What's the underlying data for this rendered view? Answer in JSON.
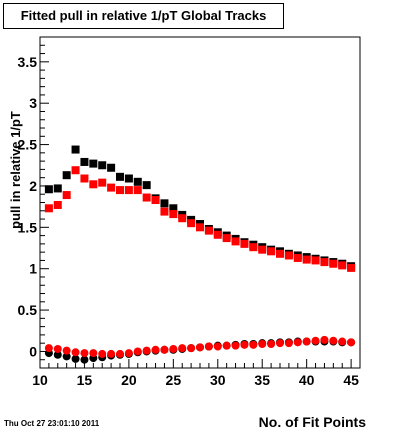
{
  "chart_data": {
    "type": "scatter",
    "title": "Fitted pull in relative 1/pT  Global Tracks",
    "xlabel": "No. of Fit Points",
    "ylabel": "pull in relative 1/pT",
    "xlim": [
      10,
      46
    ],
    "ylim": [
      -0.2,
      3.8
    ],
    "x_ticks": [
      10,
      15,
      20,
      25,
      30,
      35,
      40,
      45
    ],
    "y_ticks": [
      0,
      0.5,
      1,
      1.5,
      2,
      2.5,
      3,
      3.5
    ],
    "x_tick_labels": [
      "10",
      "15",
      "20",
      "25",
      "30",
      "35",
      "40",
      "45"
    ],
    "y_tick_labels": [
      "0",
      "0.5",
      "1",
      "1.5",
      "2",
      "2.5",
      "3",
      "3.5"
    ],
    "grid": false,
    "x": [
      11,
      12,
      13,
      14,
      15,
      16,
      17,
      18,
      19,
      20,
      21,
      22,
      23,
      24,
      25,
      26,
      27,
      28,
      29,
      30,
      31,
      32,
      33,
      34,
      35,
      36,
      37,
      38,
      39,
      40,
      41,
      42,
      43,
      44,
      45
    ],
    "series": [
      {
        "color": "#000000",
        "marker": "square",
        "values": [
          1.96,
          1.97,
          2.13,
          2.44,
          2.29,
          2.27,
          2.25,
          2.22,
          2.11,
          2.09,
          2.05,
          2.01,
          1.85,
          1.79,
          1.73,
          1.65,
          1.59,
          1.54,
          1.48,
          1.44,
          1.4,
          1.36,
          1.32,
          1.29,
          1.26,
          1.23,
          1.21,
          1.18,
          1.16,
          1.14,
          1.12,
          1.1,
          1.08,
          1.06,
          1.03
        ]
      },
      {
        "color": "#ff0000",
        "marker": "square",
        "values": [
          1.73,
          1.77,
          1.89,
          2.19,
          2.09,
          2.02,
          2.04,
          1.98,
          1.95,
          1.95,
          1.95,
          1.86,
          1.83,
          1.69,
          1.66,
          1.61,
          1.55,
          1.5,
          1.46,
          1.41,
          1.37,
          1.33,
          1.3,
          1.26,
          1.23,
          1.21,
          1.18,
          1.16,
          1.13,
          1.11,
          1.1,
          1.08,
          1.06,
          1.04,
          1.01
        ]
      },
      {
        "color": "#000000",
        "marker": "circle",
        "values": [
          -0.02,
          -0.04,
          -0.06,
          -0.09,
          -0.1,
          -0.08,
          -0.07,
          -0.05,
          -0.04,
          -0.03,
          -0.01,
          0.0,
          0.01,
          0.02,
          0.02,
          0.03,
          0.04,
          0.05,
          0.06,
          0.07,
          0.07,
          0.08,
          0.09,
          0.09,
          0.1,
          0.1,
          0.11,
          0.11,
          0.12,
          0.12,
          0.12,
          0.12,
          0.12,
          0.11,
          0.11
        ]
      },
      {
        "color": "#ff0000",
        "marker": "circle",
        "values": [
          0.04,
          0.03,
          0.01,
          -0.01,
          -0.02,
          -0.02,
          -0.03,
          -0.03,
          -0.03,
          -0.02,
          0.0,
          0.01,
          0.02,
          0.02,
          0.03,
          0.04,
          0.04,
          0.05,
          0.06,
          0.06,
          0.07,
          0.07,
          0.08,
          0.08,
          0.09,
          0.09,
          0.1,
          0.1,
          0.11,
          0.12,
          0.13,
          0.14,
          0.13,
          0.12,
          0.11
        ]
      }
    ]
  },
  "timestamp": "Thu Oct 27 23:01:10 2011"
}
